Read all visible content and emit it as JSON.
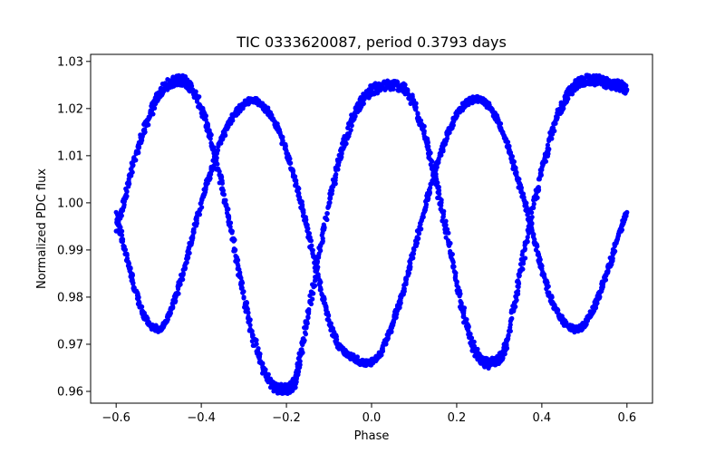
{
  "chart_data": {
    "type": "scatter",
    "title": "TIC 0333620087, period 0.3793 days",
    "xlabel": "Phase",
    "ylabel": "Normalized PDC flux",
    "xlim": [
      -0.66,
      0.66
    ],
    "ylim": [
      0.9575,
      1.0315
    ],
    "x_ticks": [
      -0.6,
      -0.4,
      -0.2,
      0.0,
      0.2,
      0.4,
      0.6
    ],
    "x_tick_labels": [
      "−0.6",
      "−0.4",
      "−0.2",
      "0.0",
      "0.2",
      "0.4",
      "0.6"
    ],
    "y_ticks": [
      0.96,
      0.97,
      0.98,
      0.99,
      1.0,
      1.01,
      1.02,
      1.03
    ],
    "y_tick_labels": [
      "0.96",
      "0.97",
      "0.98",
      "0.99",
      "1.00",
      "1.01",
      "1.02",
      "1.03"
    ],
    "grid": false,
    "marker_color": "#0000ff",
    "series": [
      {
        "x": [
          -0.6,
          -0.58,
          -0.56,
          -0.54,
          -0.52,
          -0.5,
          -0.48,
          -0.46,
          -0.45,
          -0.44,
          -0.42,
          -0.4,
          -0.38,
          -0.36,
          -0.34,
          -0.32,
          -0.3,
          -0.28,
          -0.26,
          -0.24,
          -0.22,
          -0.2,
          -0.19,
          -0.18,
          -0.17,
          -0.16,
          -0.14,
          -0.12,
          -0.1,
          -0.08,
          -0.06,
          -0.04,
          -0.02,
          0.0,
          0.02,
          0.04,
          0.06,
          0.08,
          0.1,
          0.12,
          0.14,
          0.16,
          0.18,
          0.2,
          0.22,
          0.24,
          0.26,
          0.28,
          0.3,
          0.31,
          0.32,
          0.34,
          0.36,
          0.38,
          0.4,
          0.42,
          0.44,
          0.46,
          0.48,
          0.5,
          0.52,
          0.54,
          0.56,
          0.58,
          0.6
        ],
        "y": [
          0.994,
          1.001,
          1.008,
          1.014,
          1.019,
          1.023,
          1.025,
          1.026,
          1.026,
          1.026,
          1.024,
          1.02,
          1.014,
          1.007,
          0.999,
          0.99,
          0.98,
          0.972,
          0.966,
          0.962,
          0.9605,
          0.9605,
          0.9608,
          0.962,
          0.966,
          0.971,
          0.981,
          0.991,
          1.0,
          1.008,
          1.014,
          1.019,
          1.022,
          1.024,
          1.0245,
          1.025,
          1.025,
          1.024,
          1.021,
          1.016,
          1.009,
          1.001,
          0.992,
          0.983,
          0.975,
          0.969,
          0.966,
          0.966,
          0.967,
          0.968,
          0.971,
          0.981,
          0.99,
          0.999,
          1.007,
          1.014,
          1.019,
          1.023,
          1.025,
          1.026,
          1.026,
          1.026,
          1.025,
          1.025,
          1.024
        ]
      },
      {
        "x": [
          -0.6,
          -0.58,
          -0.56,
          -0.54,
          -0.52,
          -0.5,
          -0.48,
          -0.46,
          -0.44,
          -0.42,
          -0.4,
          -0.38,
          -0.36,
          -0.34,
          -0.32,
          -0.3,
          -0.28,
          -0.26,
          -0.24,
          -0.22,
          -0.2,
          -0.18,
          -0.16,
          -0.14,
          -0.12,
          -0.1,
          -0.08,
          -0.06,
          -0.04,
          -0.02,
          0.0,
          0.02,
          0.04,
          0.06,
          0.08,
          0.1,
          0.12,
          0.14,
          0.16,
          0.18,
          0.2,
          0.22,
          0.24,
          0.26,
          0.28,
          0.3,
          0.32,
          0.34,
          0.36,
          0.38,
          0.4,
          0.42,
          0.44,
          0.46,
          0.48,
          0.5,
          0.52,
          0.54,
          0.56,
          0.58,
          0.6
        ],
        "y": [
          0.998,
          0.99,
          0.983,
          0.977,
          0.974,
          0.973,
          0.975,
          0.98,
          0.986,
          0.993,
          1.0,
          1.006,
          1.012,
          1.016,
          1.019,
          1.021,
          1.022,
          1.021,
          1.019,
          1.016,
          1.011,
          1.005,
          0.998,
          0.99,
          0.982,
          0.975,
          0.97,
          0.968,
          0.967,
          0.966,
          0.966,
          0.968,
          0.972,
          0.977,
          0.983,
          0.99,
          0.997,
          1.004,
          1.01,
          1.015,
          1.019,
          1.021,
          1.022,
          1.022,
          1.02,
          1.017,
          1.012,
          1.006,
          1.0,
          0.993,
          0.986,
          0.98,
          0.976,
          0.974,
          0.973,
          0.974,
          0.977,
          0.982,
          0.987,
          0.993,
          0.998
        ]
      }
    ]
  }
}
